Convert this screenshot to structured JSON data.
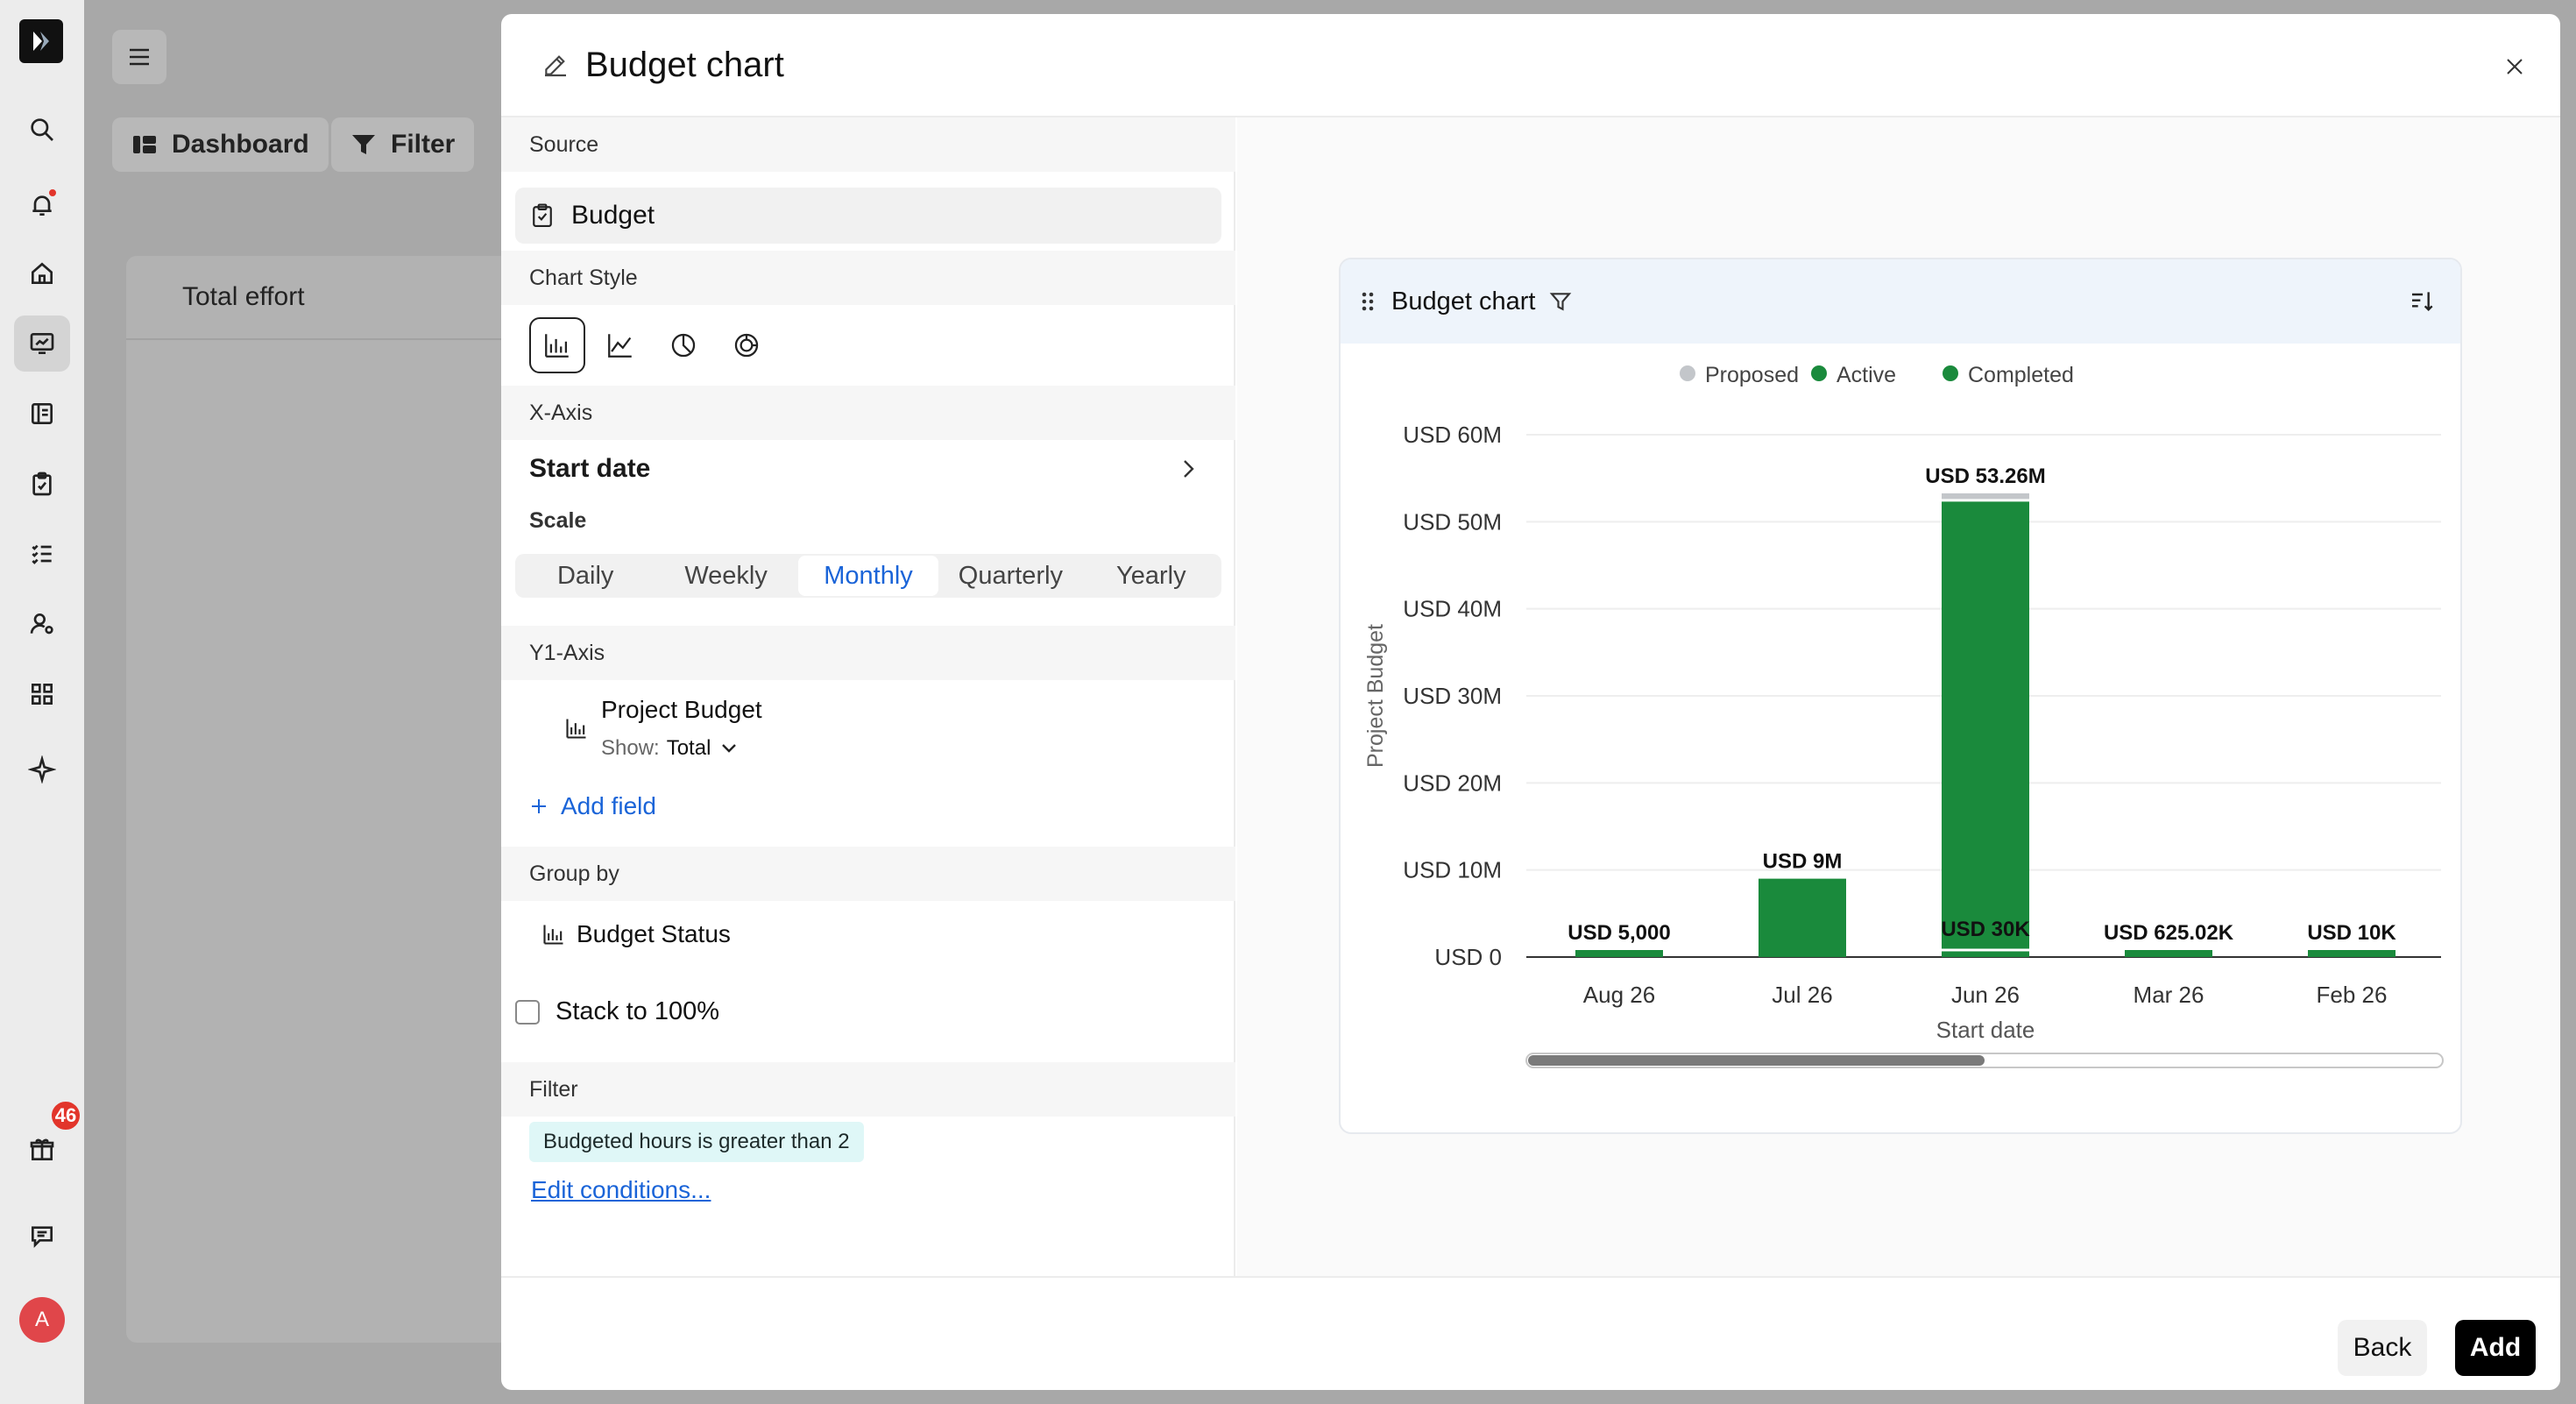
{
  "app": {
    "rail_icons": [
      "logo-icon",
      "search-icon",
      "bell-icon",
      "home-icon",
      "dashboard-icon",
      "ledger-icon",
      "clipboard-icon",
      "checklist-icon",
      "user-settings-icon",
      "apps-icon",
      "sparkle-icon",
      "gift-icon",
      "chat-icon"
    ],
    "notification_count": "46",
    "avatar_initial": "A",
    "background": {
      "dashboard_label": "Dashboard",
      "filter_label": "Filter",
      "card_title": "Total effort"
    }
  },
  "modal": {
    "title": "Budget chart",
    "source": {
      "label": "Source",
      "value": "Budget"
    },
    "chart_style": {
      "label": "Chart Style",
      "options": [
        "bar-chart-icon",
        "line-chart-icon",
        "pie-chart-icon",
        "donut-chart-icon"
      ],
      "selected": "bar-chart-icon"
    },
    "x_axis": {
      "label": "X-Axis",
      "field": "Start date",
      "scale_label": "Scale",
      "scales": [
        "Daily",
        "Weekly",
        "Monthly",
        "Quarterly",
        "Yearly"
      ],
      "selected_scale": "Monthly"
    },
    "y1_axis": {
      "label": "Y1-Axis",
      "field": "Project Budget",
      "show_label": "Show:",
      "show_value": "Total",
      "add_field": "Add field"
    },
    "group_by": {
      "label": "Group by",
      "field": "Budget Status"
    },
    "stack": {
      "label": "Stack to 100%",
      "checked": false
    },
    "filter": {
      "label": "Filter",
      "condition": "Budgeted hours is greater than 2",
      "edit_link": "Edit conditions..."
    },
    "footer": {
      "back": "Back",
      "add": "Add"
    }
  },
  "chart_data": {
    "type": "bar",
    "stacked": true,
    "title": "Budget chart",
    "xlabel": "Start date",
    "ylabel": "Project Budget",
    "categories": [
      "Aug 26",
      "Jul 26",
      "Jun 26",
      "Mar 26",
      "Feb 26"
    ],
    "series": [
      {
        "name": "Proposed",
        "color": "#c3c6ca",
        "values": [
          0,
          0,
          800000,
          0,
          0
        ]
      },
      {
        "name": "Active",
        "color": "#1a8a3c",
        "values": [
          5000,
          9000000,
          52430000,
          625020,
          10000
        ]
      },
      {
        "name": "Completed",
        "color": "#1a8a3c",
        "values": [
          0,
          0,
          30000,
          0,
          0
        ]
      }
    ],
    "data_labels": [
      "USD 5,000",
      "USD 9M",
      "USD 53.26M",
      "USD 625.02K",
      "USD 10K"
    ],
    "inner_labels": [
      null,
      null,
      "USD 30K",
      null,
      null
    ],
    "ylim": [
      0,
      60000000
    ],
    "yticks": [
      0,
      10000000,
      20000000,
      30000000,
      40000000,
      50000000,
      60000000
    ],
    "ytick_labels": [
      "USD 0",
      "USD 10M",
      "USD 20M",
      "USD 30M",
      "USD 40M",
      "USD 50M",
      "USD 60M"
    ],
    "legend_position": "top-center",
    "grid": true,
    "scrollbar_position": 0.5
  }
}
